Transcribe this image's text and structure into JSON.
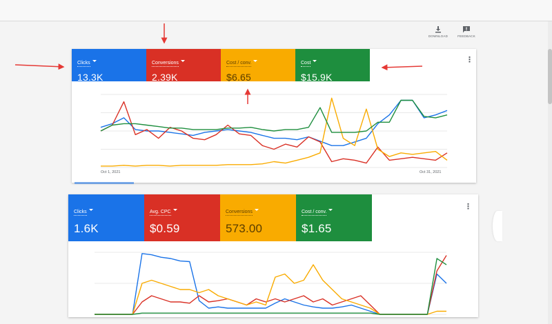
{
  "toolbar": {
    "download_label": "DOWNLOAD",
    "feedback_label": "FEEDBACK"
  },
  "card1": {
    "tiles": [
      {
        "label": "Clicks",
        "value": "13.3K"
      },
      {
        "label": "Conversions",
        "value": "2.39K"
      },
      {
        "label": "Cost / conv.",
        "value": "$6.65"
      },
      {
        "label": "Cost",
        "value": "$15.9K"
      }
    ],
    "x_start": "Oct 1, 2021",
    "x_end": "Oct 31, 2021"
  },
  "card2": {
    "tiles": [
      {
        "label": "Clicks",
        "value": "1.6K"
      },
      {
        "label": "Avg. CPC",
        "value": "$0.59"
      },
      {
        "label": "Conversions",
        "value": "573.00"
      },
      {
        "label": "Cost / conv.",
        "value": "$1.65"
      }
    ]
  },
  "colors": {
    "blue": "#1a73e8",
    "red": "#d93025",
    "orange": "#f9ab00",
    "green": "#1e8e3e",
    "annotation": "#e53935"
  },
  "chart_data": [
    {
      "type": "line",
      "x": [
        1,
        2,
        3,
        4,
        5,
        6,
        7,
        8,
        9,
        10,
        11,
        12,
        13,
        14,
        15,
        16,
        17,
        18,
        19,
        20,
        21,
        22,
        23,
        24,
        25,
        26,
        27,
        28,
        29,
        30,
        31
      ],
      "ylim": [
        0,
        100
      ],
      "series": [
        {
          "color": "#1a73e8",
          "values": [
            55,
            60,
            68,
            52,
            50,
            50,
            48,
            46,
            44,
            48,
            50,
            52,
            50,
            48,
            44,
            40,
            40,
            38,
            42,
            36,
            30,
            30,
            35,
            40,
            60,
            72,
            92,
            92,
            68,
            72,
            78
          ]
        },
        {
          "color": "#d93025",
          "values": [
            50,
            58,
            90,
            45,
            52,
            40,
            55,
            50,
            40,
            38,
            45,
            58,
            46,
            44,
            30,
            25,
            32,
            28,
            42,
            35,
            8,
            12,
            10,
            6,
            28,
            10,
            12,
            14,
            12,
            10,
            20
          ]
        },
        {
          "color": "#f9ab00",
          "values": [
            2,
            2,
            3,
            2,
            3,
            3,
            2,
            3,
            3,
            3,
            3,
            4,
            4,
            4,
            5,
            8,
            6,
            10,
            14,
            20,
            95,
            40,
            30,
            80,
            25,
            15,
            20,
            18,
            20,
            22,
            10
          ]
        },
        {
          "color": "#1e8e3e",
          "values": [
            50,
            58,
            60,
            60,
            58,
            56,
            54,
            54,
            52,
            52,
            52,
            54,
            54,
            55,
            52,
            50,
            52,
            52,
            55,
            82,
            48,
            48,
            48,
            50,
            62,
            62,
            92,
            92,
            70,
            68,
            72
          ]
        }
      ]
    },
    {
      "type": "line",
      "x": [
        1,
        2,
        3,
        4,
        5,
        6,
        7,
        8,
        9,
        10,
        11,
        12,
        13,
        14,
        15,
        16,
        17,
        18,
        19,
        20,
        21,
        22,
        23,
        24,
        25,
        26,
        27,
        28,
        29,
        30,
        31,
        32,
        33,
        34,
        35,
        36,
        37,
        38
      ],
      "ylim": [
        0,
        100
      ],
      "series": [
        {
          "color": "#1a73e8",
          "values": [
            0,
            0,
            0,
            0,
            0,
            98,
            96,
            92,
            90,
            86,
            85,
            22,
            10,
            12,
            10,
            10,
            10,
            10,
            10,
            18,
            25,
            20,
            15,
            12,
            10,
            10,
            12,
            15,
            10,
            5,
            0,
            0,
            0,
            0,
            0,
            0,
            65,
            50
          ]
        },
        {
          "color": "#d93025",
          "values": [
            0,
            0,
            0,
            0,
            0,
            20,
            30,
            25,
            20,
            20,
            18,
            30,
            20,
            22,
            25,
            20,
            15,
            25,
            20,
            25,
            20,
            25,
            30,
            20,
            25,
            15,
            20,
            25,
            30,
            15,
            0,
            0,
            0,
            0,
            0,
            0,
            70,
            95
          ]
        },
        {
          "color": "#f9ab00",
          "values": [
            0,
            0,
            0,
            0,
            0,
            50,
            55,
            50,
            45,
            40,
            40,
            35,
            40,
            30,
            25,
            20,
            15,
            20,
            15,
            60,
            65,
            50,
            55,
            80,
            55,
            40,
            25,
            20,
            15,
            10,
            0,
            0,
            0,
            0,
            0,
            0,
            5,
            5
          ]
        },
        {
          "color": "#1e8e3e",
          "values": [
            0,
            0,
            0,
            0,
            0,
            2,
            2,
            2,
            2,
            2,
            2,
            2,
            2,
            2,
            2,
            2,
            2,
            2,
            2,
            2,
            2,
            2,
            2,
            2,
            2,
            2,
            2,
            2,
            2,
            2,
            0,
            0,
            0,
            0,
            0,
            0,
            90,
            80
          ]
        }
      ]
    }
  ]
}
